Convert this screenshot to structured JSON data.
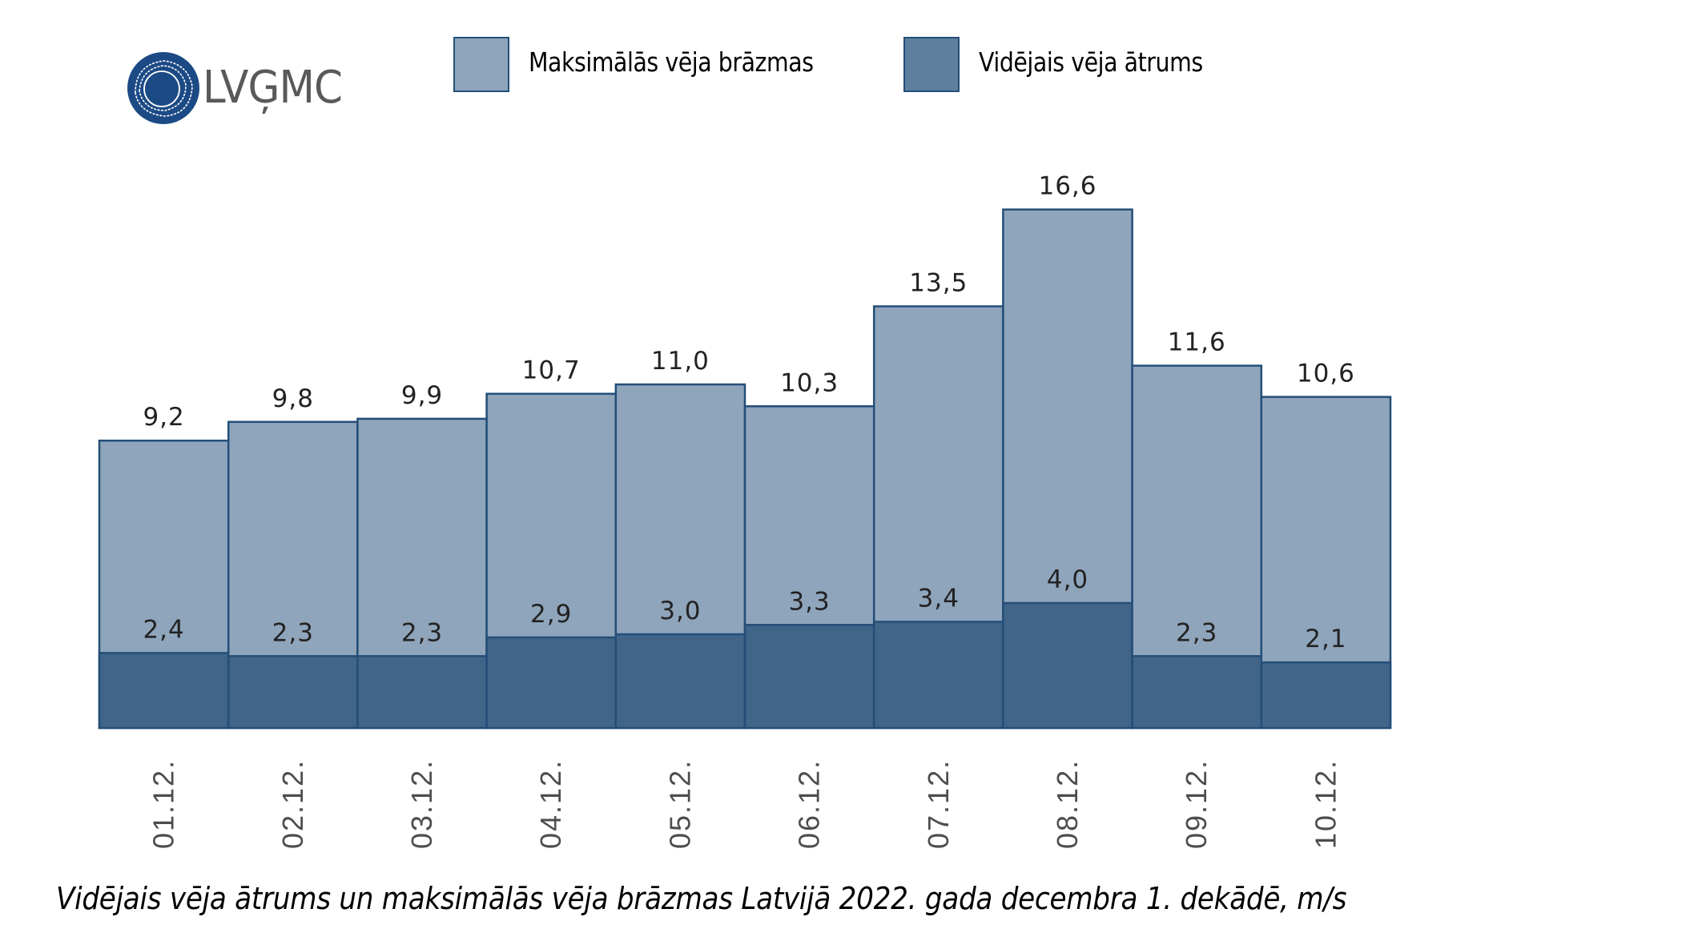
{
  "logo": {
    "text": "LVĢMC",
    "color": "#1b4a85",
    "text_color": "#58595b"
  },
  "legend": [
    {
      "label": "Maksimālās vēja brāzmas",
      "color": "#8fa5bc"
    },
    {
      "label": "Vidējais vēja ātrums",
      "color": "#5f7f9f"
    }
  ],
  "caption": "Vidējais vēja ātrums un maksimālās vēja brāzmas Latvijā 2022. gada decembra 1. dekādē, m/s",
  "colors": {
    "max_fill": "#8fa5bc",
    "avg_fill": "#416588",
    "border": "#244e78",
    "label": "#222222",
    "axis_label": "#4d4d4d"
  },
  "chart_data": {
    "type": "bar",
    "title": "Vidējais vēja ātrums un maksimālās vēja brāzmas Latvijā 2022. gada decembra 1. dekādē, m/s",
    "xlabel": "",
    "ylabel": "m/s",
    "categories": [
      "01.12.",
      "02.12.",
      "03.12.",
      "04.12.",
      "05.12.",
      "06.12.",
      "07.12.",
      "08.12.",
      "09.12.",
      "10.12."
    ],
    "series": [
      {
        "name": "Maksimālās vēja brāzmas",
        "values": [
          9.2,
          9.8,
          9.9,
          10.7,
          11.0,
          10.3,
          13.5,
          16.6,
          11.6,
          10.6
        ],
        "labels": [
          "9,2",
          "9,8",
          "9,9",
          "10,7",
          "11,0",
          "10,3",
          "13,5",
          "16,6",
          "11,6",
          "10,6"
        ]
      },
      {
        "name": "Vidējais vēja ātrums",
        "values": [
          2.4,
          2.3,
          2.3,
          2.9,
          3.0,
          3.3,
          3.4,
          4.0,
          2.3,
          2.1
        ],
        "labels": [
          "2,4",
          "2,3",
          "2,3",
          "2,9",
          "3,0",
          "3,3",
          "3,4",
          "4,0",
          "2,3",
          "2,1"
        ]
      }
    ],
    "overlapping": true,
    "grid": false,
    "y_axis_visible": false,
    "legend_position": "top",
    "ylim": [
      0,
      18
    ]
  }
}
